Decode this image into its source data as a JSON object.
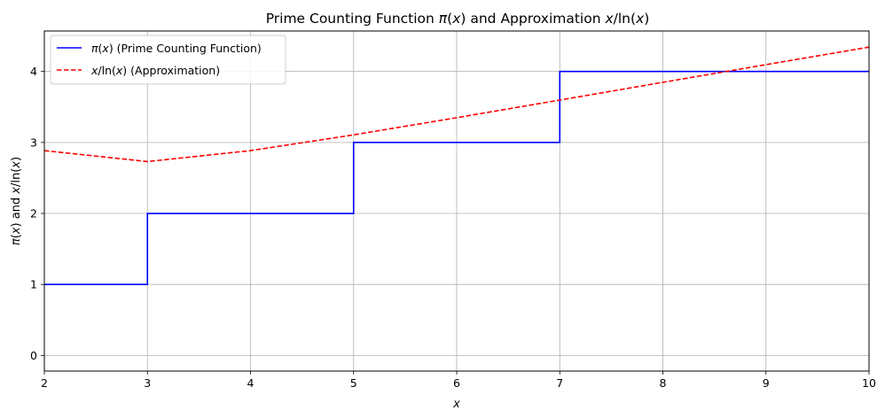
{
  "chart_data": {
    "type": "line",
    "title": {
      "pre": "Prime Counting Function ",
      "pi": "π",
      "open": "(",
      "x": "x",
      "mid": ") and Approximation ",
      "x2": "x",
      "slash": "/ln(",
      "x3": "x",
      "close": ")"
    },
    "xlabel": "x",
    "ylabel": {
      "pi": "π",
      "open": "(",
      "x": "x",
      "mid": ") and ",
      "x2": "x",
      "slash": "/ln(",
      "x3": "x",
      "close": ")"
    },
    "xlim": [
      2,
      10
    ],
    "ylim": [
      -0.22,
      4.57
    ],
    "xticks": [
      "2",
      "3",
      "4",
      "5",
      "6",
      "7",
      "8",
      "9",
      "10"
    ],
    "yticks": [
      "0",
      "1",
      "2",
      "3",
      "4"
    ],
    "grid": true,
    "legend_position": "top-left",
    "series": [
      {
        "name": {
          "pi": "π",
          "open": "(",
          "x": "x",
          "rest": ") (Prime Counting Function)"
        },
        "style": "step",
        "color": "#0000ff",
        "x": [
          2,
          3,
          3,
          5,
          5,
          7,
          7,
          10
        ],
        "y": [
          1,
          1,
          2,
          2,
          3,
          3,
          4,
          4
        ]
      },
      {
        "name": {
          "x": "x",
          "slash": "/ln(",
          "x2": "x",
          "rest": ") (Approximation)"
        },
        "style": "dashed",
        "color": "#ff0000",
        "x": [
          2,
          3,
          4,
          5,
          6,
          7,
          8,
          9,
          10
        ],
        "y": [
          2.885,
          2.731,
          2.885,
          3.107,
          3.349,
          3.597,
          3.847,
          4.096,
          4.343
        ]
      }
    ]
  }
}
